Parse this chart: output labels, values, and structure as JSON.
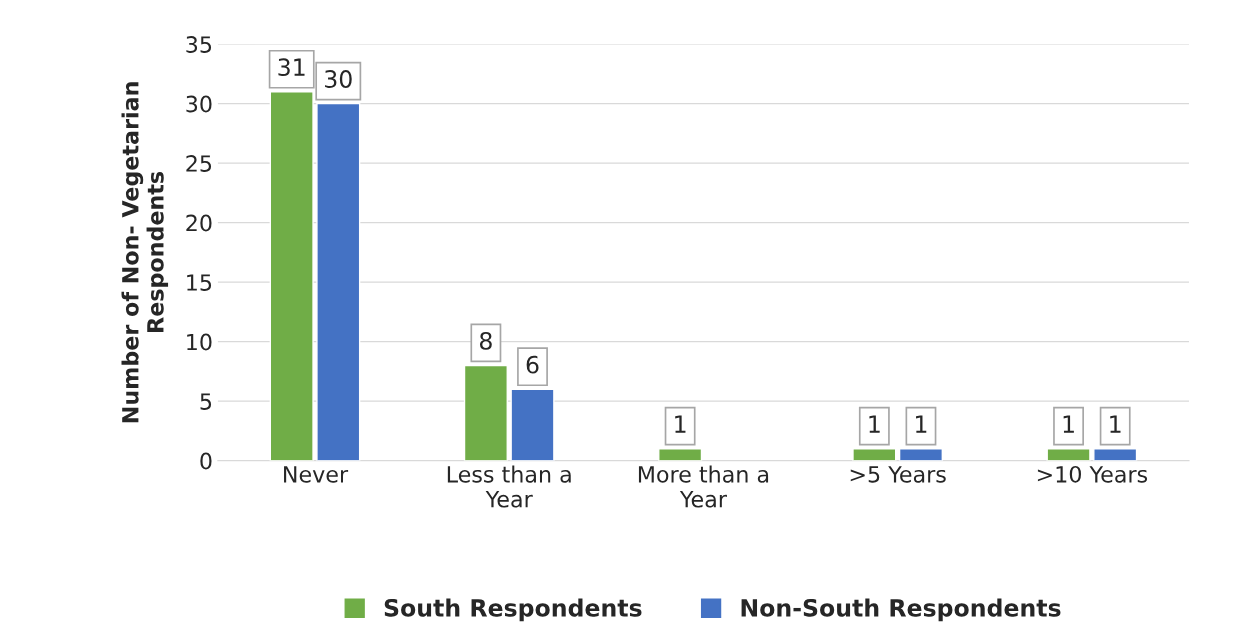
{
  "chart_data": {
    "type": "bar",
    "ylabel": "Number of Non- Vegetarian Respondents",
    "categories": [
      "Never",
      "Less than a Year",
      "More than a Year",
      ">5 Years",
      ">10 Years"
    ],
    "series": [
      {
        "name": "South Respondents",
        "color": "#70ad47",
        "values": [
          31,
          8,
          1,
          1,
          1
        ]
      },
      {
        "name": "Non-South Respondents",
        "color": "#4472c4",
        "values": [
          30,
          6,
          null,
          1,
          1
        ]
      }
    ],
    "ylim": [
      0,
      35
    ],
    "yticks": [
      0,
      5,
      10,
      15,
      20,
      25,
      30,
      35
    ],
    "grid": "y",
    "legend": "bottom",
    "data_labels": true
  }
}
